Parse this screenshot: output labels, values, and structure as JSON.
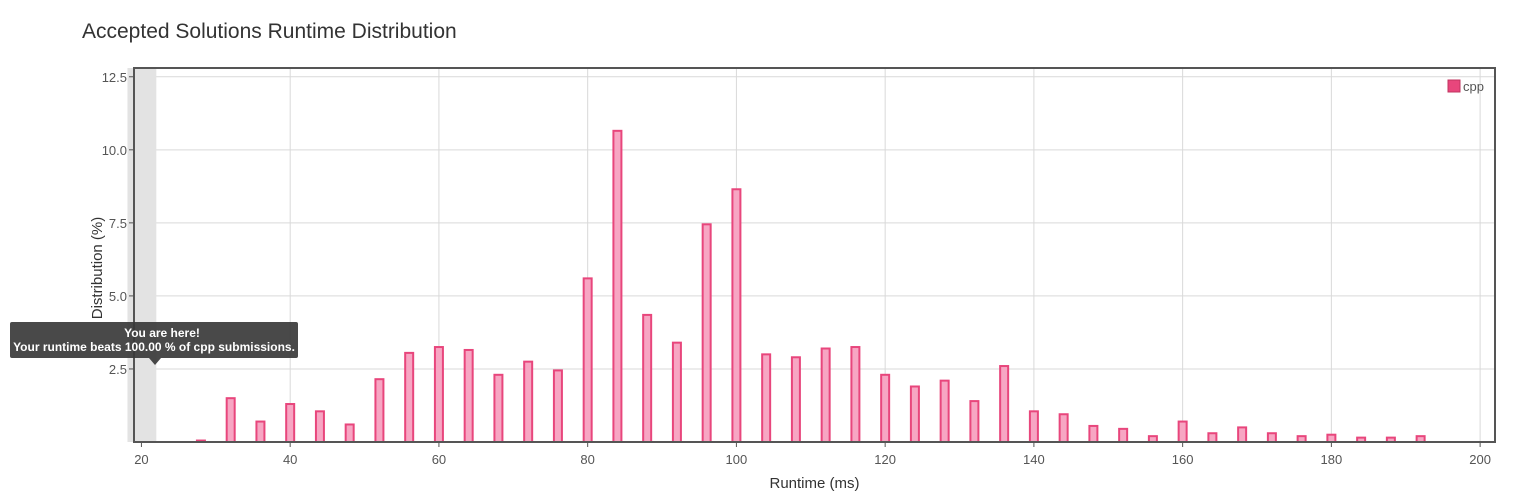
{
  "chart_data": {
    "type": "bar",
    "title": "Accepted Solutions Runtime Distribution",
    "xlabel": "Runtime (ms)",
    "ylabel": "Distribution (%)",
    "xlim": [
      19,
      202
    ],
    "ylim": [
      0,
      12.8
    ],
    "x_ticks": [
      20,
      40,
      60,
      80,
      100,
      120,
      140,
      160,
      180,
      200
    ],
    "y_ticks": [
      2.5,
      5.0,
      7.5,
      10.0,
      12.5
    ],
    "y_tick_labels": [
      "2.5",
      "5.0",
      "7.5",
      "10.0",
      "12.5"
    ],
    "grid": true,
    "legend_position": "top-right",
    "series": [
      {
        "name": "cpp",
        "color": "#e8467c",
        "fill": "#f7a6c3",
        "x": [
          28,
          32,
          36,
          40,
          44,
          48,
          52,
          56,
          60,
          64,
          68,
          72,
          76,
          80,
          84,
          88,
          92,
          96,
          100,
          104,
          108,
          112,
          116,
          120,
          124,
          128,
          132,
          136,
          140,
          144,
          148,
          152,
          156,
          160,
          164,
          168,
          172,
          176,
          180,
          184,
          188,
          192
        ],
        "values": [
          0.05,
          1.5,
          0.7,
          1.3,
          1.05,
          0.6,
          2.15,
          3.05,
          3.25,
          3.15,
          2.3,
          2.75,
          2.45,
          5.6,
          10.65,
          4.35,
          3.4,
          7.45,
          8.65,
          3.0,
          2.9,
          3.2,
          3.25,
          2.3,
          1.9,
          2.1,
          1.4,
          2.6,
          1.05,
          0.95,
          0.55,
          0.45,
          0.2,
          0.7,
          0.3,
          0.5,
          0.3,
          0.2,
          0.25,
          0.15,
          0.15,
          0.2
        ]
      }
    ],
    "highlight": {
      "x_range": [
        20,
        22
      ],
      "tooltip_line1": "You are here!",
      "tooltip_line2": "Your runtime beats 100.00 % of cpp submissions."
    }
  }
}
